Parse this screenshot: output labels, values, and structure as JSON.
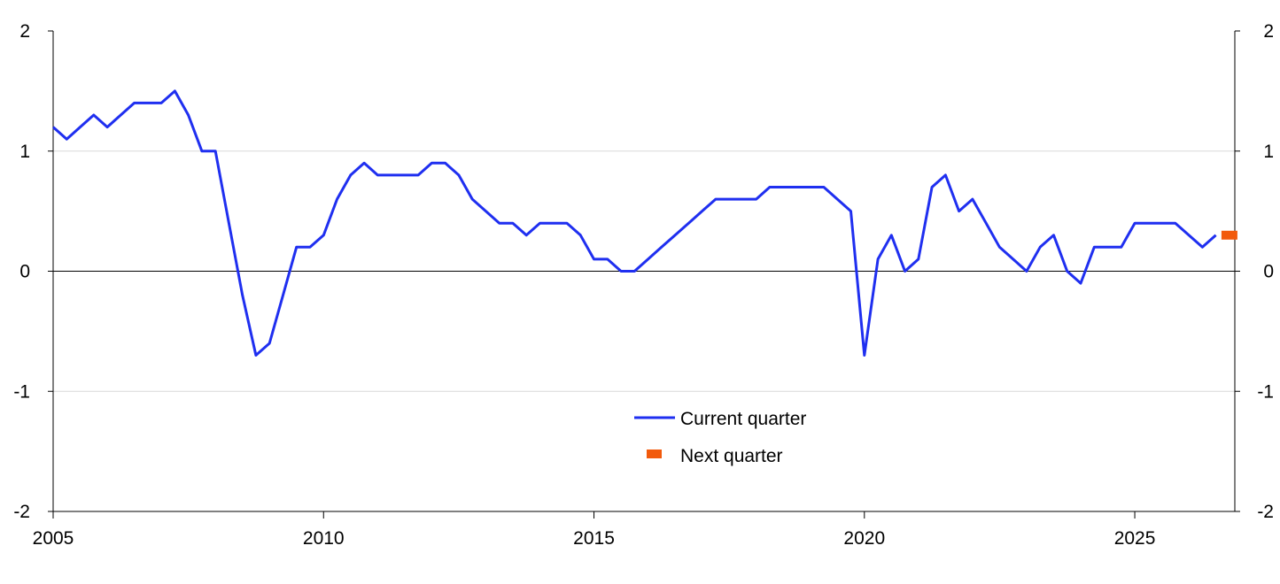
{
  "chart_data": {
    "type": "line",
    "title": "",
    "xlabel": "",
    "ylabel": "",
    "xlim": [
      2005,
      2026.85
    ],
    "ylim": [
      -2,
      2
    ],
    "x_ticks": [
      2005,
      2010,
      2015,
      2020,
      2025
    ],
    "y_ticks": [
      -2,
      -1,
      0,
      1,
      2
    ],
    "grid": "horizontal",
    "dual_y_axis": true,
    "legend_position": "center-bottom",
    "colors": {
      "current": "#1f2ff0",
      "next": "#f25a0c",
      "zero_line": "#000000",
      "grid": "#d9d9d9"
    },
    "series": [
      {
        "name": "Current quarter",
        "style": "line",
        "x": [
          2005.0,
          2005.25,
          2005.5,
          2005.75,
          2006.0,
          2006.25,
          2006.5,
          2006.75,
          2007.0,
          2007.25,
          2007.5,
          2007.75,
          2008.0,
          2008.25,
          2008.5,
          2008.75,
          2009.0,
          2009.25,
          2009.5,
          2009.75,
          2010.0,
          2010.25,
          2010.5,
          2010.75,
          2011.0,
          2011.25,
          2011.5,
          2011.75,
          2012.0,
          2012.25,
          2012.5,
          2012.75,
          2013.0,
          2013.25,
          2013.5,
          2013.75,
          2014.0,
          2014.25,
          2014.5,
          2014.75,
          2015.0,
          2015.25,
          2015.5,
          2015.75,
          2016.0,
          2016.25,
          2016.5,
          2016.75,
          2017.0,
          2017.25,
          2017.5,
          2017.75,
          2018.0,
          2018.25,
          2018.5,
          2018.75,
          2019.0,
          2019.25,
          2019.5,
          2019.75,
          2020.0,
          2020.25,
          2020.5,
          2020.75,
          2021.0,
          2021.25,
          2021.5,
          2021.75,
          2022.0,
          2022.25,
          2022.5,
          2022.75,
          2023.0,
          2023.25,
          2023.5,
          2023.75,
          2024.0,
          2024.25,
          2024.5,
          2024.75,
          2025.0,
          2025.25,
          2025.5,
          2025.75,
          2026.0,
          2026.25,
          2026.5
        ],
        "values": [
          1.2,
          1.1,
          1.2,
          1.3,
          1.2,
          1.3,
          1.4,
          1.4,
          1.4,
          1.5,
          1.3,
          1.0,
          1.0,
          0.4,
          -0.2,
          -0.7,
          -0.6,
          -0.2,
          0.2,
          0.2,
          0.3,
          0.6,
          0.8,
          0.9,
          0.8,
          0.8,
          0.8,
          0.8,
          0.9,
          0.9,
          0.8,
          0.6,
          0.5,
          0.4,
          0.4,
          0.3,
          0.4,
          0.4,
          0.4,
          0.3,
          0.1,
          0.1,
          0.0,
          0.0,
          0.1,
          0.2,
          0.3,
          0.4,
          0.5,
          0.6,
          0.6,
          0.6,
          0.6,
          0.7,
          0.7,
          0.7,
          0.7,
          0.7,
          0.6,
          0.5,
          -0.7,
          0.1,
          0.3,
          0.0,
          0.1,
          0.7,
          0.8,
          0.5,
          0.6,
          0.4,
          0.2,
          0.1,
          0.0,
          0.2,
          0.3,
          0.0,
          -0.1,
          0.2,
          0.2,
          0.2,
          0.4,
          0.4,
          0.4,
          0.4,
          0.3,
          0.2,
          0.3
        ]
      },
      {
        "name": "Next quarter",
        "style": "marker",
        "x": [
          2026.75
        ],
        "values": [
          0.3
        ]
      }
    ]
  }
}
